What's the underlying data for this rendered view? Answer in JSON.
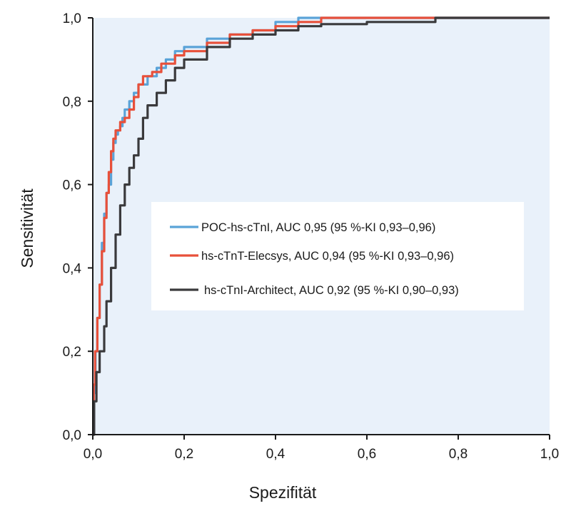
{
  "chart_data": {
    "type": "line",
    "title": "",
    "xlabel": "Spezifität",
    "ylabel": "Sensitivität",
    "xlim": [
      0,
      1
    ],
    "ylim": [
      0,
      1
    ],
    "x_ticks": [
      "0,0",
      "0,2",
      "0,4",
      "0,6",
      "0,8",
      "1,0"
    ],
    "y_ticks": [
      "0,0",
      "0,2",
      "0,4",
      "0,6",
      "0,8",
      "1,0"
    ],
    "grid": false,
    "background": "#e9f1fa",
    "legend_position": "center-right",
    "series": [
      {
        "name": "POC-hs-cTnI, AUC 0,95 (95 %-KI 0,93–0,96)",
        "color": "#5aa3d8",
        "points": [
          [
            0,
            0
          ],
          [
            0.002,
            0.1
          ],
          [
            0.006,
            0.2
          ],
          [
            0.01,
            0.28
          ],
          [
            0.015,
            0.36
          ],
          [
            0.02,
            0.46
          ],
          [
            0.025,
            0.53
          ],
          [
            0.03,
            0.58
          ],
          [
            0.035,
            0.6
          ],
          [
            0.04,
            0.66
          ],
          [
            0.045,
            0.7
          ],
          [
            0.05,
            0.72
          ],
          [
            0.055,
            0.73
          ],
          [
            0.06,
            0.74
          ],
          [
            0.065,
            0.76
          ],
          [
            0.07,
            0.78
          ],
          [
            0.08,
            0.8
          ],
          [
            0.09,
            0.82
          ],
          [
            0.1,
            0.84
          ],
          [
            0.12,
            0.86
          ],
          [
            0.14,
            0.88
          ],
          [
            0.16,
            0.9
          ],
          [
            0.18,
            0.92
          ],
          [
            0.2,
            0.93
          ],
          [
            0.25,
            0.95
          ],
          [
            0.3,
            0.96
          ],
          [
            0.35,
            0.97
          ],
          [
            0.4,
            0.99
          ],
          [
            0.45,
            1.0
          ],
          [
            0.75,
            1.0
          ],
          [
            1.0,
            1.0
          ]
        ]
      },
      {
        "name": "hs-cTnT-Elecsys, AUC 0,94 (95 %-KI 0,93–0,96)",
        "color": "#e8503a",
        "points": [
          [
            0,
            0
          ],
          [
            0.002,
            0.12
          ],
          [
            0.005,
            0.2
          ],
          [
            0.01,
            0.28
          ],
          [
            0.015,
            0.36
          ],
          [
            0.02,
            0.44
          ],
          [
            0.025,
            0.52
          ],
          [
            0.03,
            0.58
          ],
          [
            0.035,
            0.63
          ],
          [
            0.04,
            0.68
          ],
          [
            0.045,
            0.71
          ],
          [
            0.05,
            0.73
          ],
          [
            0.06,
            0.75
          ],
          [
            0.07,
            0.76
          ],
          [
            0.08,
            0.78
          ],
          [
            0.09,
            0.81
          ],
          [
            0.1,
            0.84
          ],
          [
            0.11,
            0.86
          ],
          [
            0.13,
            0.87
          ],
          [
            0.15,
            0.89
          ],
          [
            0.18,
            0.91
          ],
          [
            0.2,
            0.92
          ],
          [
            0.25,
            0.94
          ],
          [
            0.3,
            0.96
          ],
          [
            0.35,
            0.97
          ],
          [
            0.4,
            0.98
          ],
          [
            0.45,
            0.99
          ],
          [
            0.5,
            1.0
          ],
          [
            0.75,
            1.0
          ],
          [
            1.0,
            1.0
          ]
        ]
      },
      {
        "name": "hs-cTnI-Architect, AUC 0,92 (95 %-KI 0,90–0,93)",
        "color": "#3a3a3c",
        "points": [
          [
            0,
            0
          ],
          [
            0.003,
            0.08
          ],
          [
            0.008,
            0.15
          ],
          [
            0.015,
            0.2
          ],
          [
            0.025,
            0.26
          ],
          [
            0.03,
            0.32
          ],
          [
            0.04,
            0.4
          ],
          [
            0.05,
            0.48
          ],
          [
            0.06,
            0.55
          ],
          [
            0.07,
            0.6
          ],
          [
            0.08,
            0.64
          ],
          [
            0.09,
            0.67
          ],
          [
            0.1,
            0.71
          ],
          [
            0.11,
            0.76
          ],
          [
            0.12,
            0.79
          ],
          [
            0.14,
            0.82
          ],
          [
            0.16,
            0.85
          ],
          [
            0.18,
            0.88
          ],
          [
            0.2,
            0.9
          ],
          [
            0.25,
            0.93
          ],
          [
            0.3,
            0.95
          ],
          [
            0.35,
            0.96
          ],
          [
            0.4,
            0.97
          ],
          [
            0.45,
            0.98
          ],
          [
            0.5,
            0.985
          ],
          [
            0.6,
            0.99
          ],
          [
            0.75,
            1.0
          ],
          [
            1.0,
            1.0
          ]
        ]
      }
    ]
  }
}
